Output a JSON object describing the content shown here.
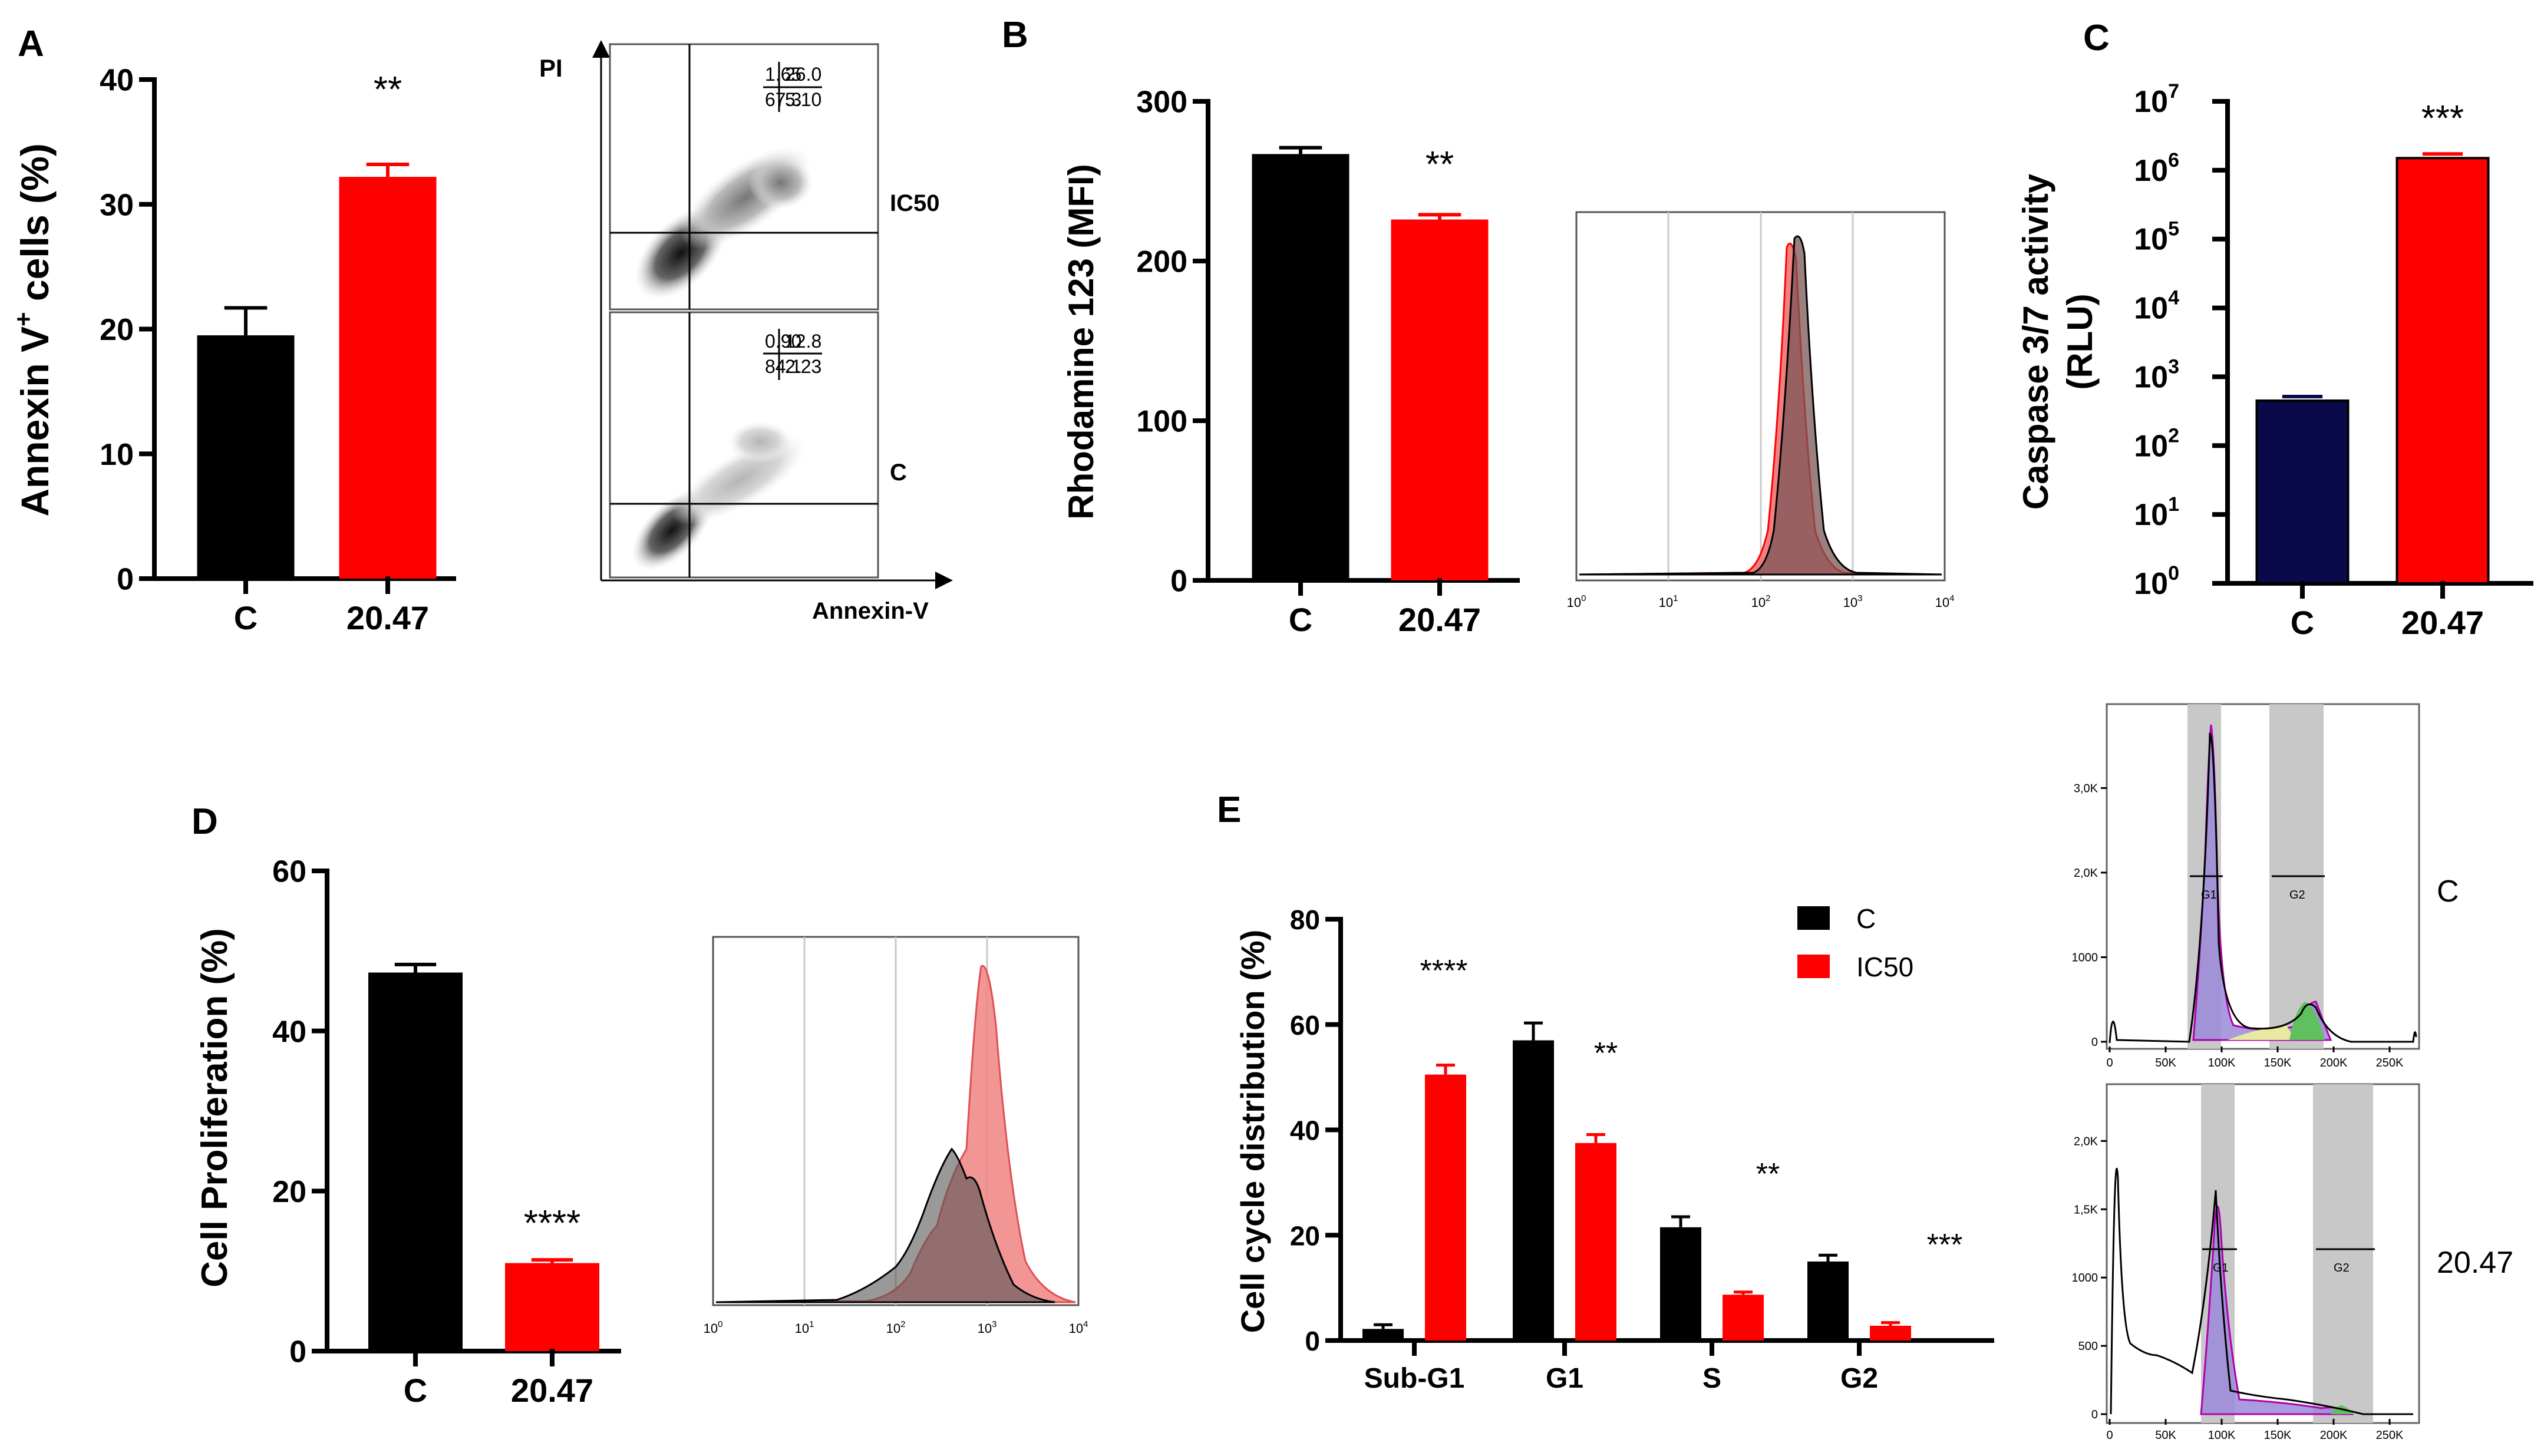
{
  "colors": {
    "black": "#000000",
    "red": "#ff0000",
    "navy": "#0a0a4a",
    "pink": "#f08a8a",
    "grey": "#808080"
  },
  "panels": {
    "A": "A",
    "B": "B",
    "C": "C",
    "D": "D",
    "E": "E"
  },
  "flow_A": {
    "y_label": "PI",
    "x_label": "Annexin-V",
    "top": {
      "label": "IC50",
      "q_ul": "1.65",
      "q_ur": "26.0",
      "q_ll": "67.3",
      "q_lr": "5.10"
    },
    "bottom": {
      "label": "C",
      "q_ul": "0.90",
      "q_ur": "12.8",
      "q_ll": "84.1",
      "q_lr": "2.23"
    }
  },
  "histo_ticks": {
    "t0": "10",
    "e0": "0",
    "t1": "10",
    "e1": "1",
    "t2": "10",
    "e2": "2",
    "t3": "10",
    "e3": "3",
    "t4": "10",
    "e4": "4"
  },
  "cycle_histo": {
    "c": {
      "label": "C",
      "y_ticks": [
        "0",
        "1000",
        "2,0K",
        "3,0K"
      ],
      "x_ticks": [
        "0",
        "50K",
        "100K",
        "150K",
        "200K",
        "250K"
      ],
      "g1": "G1",
      "g2": "G2"
    },
    "t": {
      "label": "20.47",
      "y_ticks": [
        "0",
        "500",
        "1000",
        "1,5K",
        "2,0K"
      ],
      "x_ticks": [
        "0",
        "50K",
        "100K",
        "150K",
        "200K",
        "250K"
      ],
      "g1": "G1",
      "g2": "G2"
    }
  },
  "chart_data": [
    {
      "panel": "A",
      "type": "bar",
      "categories": [
        "C",
        "20.47"
      ],
      "values": [
        19.5,
        32.2
      ],
      "errors": [
        2.2,
        1.0
      ],
      "colors": [
        "#000000",
        "#ff0000"
      ],
      "ylabel_pre": "Annexin V",
      "ylabel_sup": "+",
      "ylabel_post": " cells (%)",
      "ylim": [
        0,
        40
      ],
      "yticks": [
        "0",
        "10",
        "20",
        "30",
        "40"
      ],
      "significance": "**"
    },
    {
      "panel": "B",
      "type": "bar",
      "categories": [
        "C",
        "20.47"
      ],
      "values": [
        267,
        226
      ],
      "errors": [
        4,
        3
      ],
      "colors": [
        "#000000",
        "#ff0000"
      ],
      "ylabel": "Rhodamine 123 (MFI)",
      "ylim": [
        0,
        300
      ],
      "yticks": [
        "0",
        "100",
        "200",
        "300"
      ],
      "significance": "**"
    },
    {
      "panel": "C",
      "type": "bar",
      "yscale": "log",
      "categories": [
        "C",
        "20.47"
      ],
      "values": [
        450,
        1500000
      ],
      "colors": [
        "#0a0a4a",
        "#ff0000"
      ],
      "ylabel_line1": "Caspase 3/7 activity",
      "ylabel_line2": "(RLU)",
      "ylim": [
        1,
        10000000
      ],
      "ytick_base": "10",
      "ytick_exponents": [
        "0",
        "1",
        "2",
        "3",
        "4",
        "5",
        "6",
        "7"
      ],
      "significance": "***"
    },
    {
      "panel": "D",
      "type": "bar",
      "categories": [
        "C",
        "20.47"
      ],
      "values": [
        47.3,
        11.0
      ],
      "errors": [
        1.0,
        0.4
      ],
      "colors": [
        "#000000",
        "#ff0000"
      ],
      "ylabel": "Cell Proliferation (%)",
      "ylim": [
        0,
        60
      ],
      "yticks": [
        "0",
        "20",
        "40",
        "60"
      ],
      "significance": "****"
    },
    {
      "panel": "E",
      "type": "bar",
      "categories": [
        "Sub-G1",
        "G1",
        "S",
        "G2"
      ],
      "series": [
        {
          "name": "C",
          "color": "#000000",
          "values": [
            2.2,
            57.0,
            21.5,
            15.0
          ],
          "errors": [
            0.8,
            3.3,
            2.0,
            1.2
          ]
        },
        {
          "name": "IC50",
          "color": "#ff0000",
          "values": [
            50.5,
            37.5,
            8.7,
            2.8
          ],
          "errors": [
            1.8,
            1.6,
            0.5,
            0.6
          ]
        }
      ],
      "ylabel": "Cell cycle distribution (%)",
      "ylim": [
        0,
        80
      ],
      "yticks": [
        "0",
        "20",
        "40",
        "60",
        "80"
      ],
      "significance": [
        "****",
        "**",
        "**",
        "***"
      ]
    }
  ]
}
